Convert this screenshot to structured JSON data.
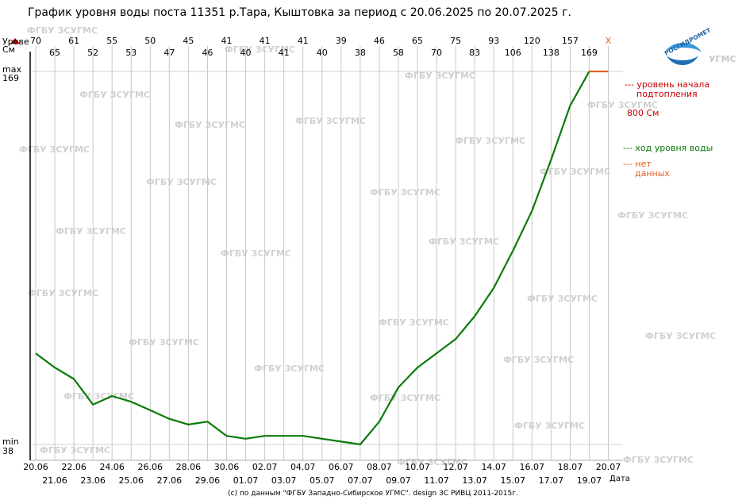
{
  "chart_data": {
    "type": "line",
    "title": "График уровня воды поста 11351 р.Тара, Кыштовка за период с 20.06.2025 по 20.07.2025 г.",
    "ylabel_line1": "Урове",
    "ylabel_line2": "Cм",
    "xlabel": "Дата",
    "max_label": "max",
    "min_label": "min",
    "ymin": 38,
    "ymax": 169,
    "dates": [
      "20.06",
      "21.06",
      "22.06",
      "23.06",
      "24.06",
      "25.06",
      "26.06",
      "27.06",
      "28.06",
      "29.06",
      "30.06",
      "01.07",
      "02.07",
      "03.07",
      "04.07",
      "05.07",
      "06.07",
      "07.07",
      "08.07",
      "09.07",
      "10.07",
      "11.07",
      "12.07",
      "13.07",
      "14.07",
      "15.07",
      "16.07",
      "17.07",
      "18.07",
      "19.07",
      "20.07"
    ],
    "top_values": [
      "70",
      "65",
      "61",
      "52",
      "55",
      "53",
      "50",
      "47",
      "45",
      "46",
      "41",
      "40",
      "41",
      "41",
      "41",
      "40",
      "39",
      "38",
      "46",
      "58",
      "65",
      "70",
      "75",
      "83",
      "93",
      "106",
      "120",
      "138",
      "157",
      "169",
      "X"
    ],
    "series": [
      {
        "values": [
          70,
          65,
          61,
          52,
          55,
          53,
          50,
          47,
          45,
          46,
          41,
          40,
          41,
          41,
          41,
          40,
          39,
          38,
          46,
          58,
          65,
          70,
          75,
          83,
          93,
          106,
          120,
          138,
          157,
          169,
          null
        ],
        "color": "#0a7a0a"
      }
    ],
    "no_data_color": "#e06020",
    "legend": [
      {
        "text": "--- уровень начала",
        "color": "#cc0000"
      },
      {
        "text": "подтопления",
        "color": "#cc0000"
      },
      {
        "text": "800 См",
        "color": "#cc0000"
      },
      {
        "text": "--- ход уровня воды",
        "color": "#0a7a0a"
      },
      {
        "text": "--- нет",
        "color": "#e06020"
      },
      {
        "text": "данных",
        "color": "#e06020"
      }
    ],
    "logo_text": "РОСГИДРОМЕТ",
    "logo_suffix": "УГМС",
    "watermark": "ФГБУ ЗСУГМС",
    "footer": "(c) по данным \"ФГБУ Западно-Сибирское УГМС\". design ЗС РИВЦ 2011-2015г."
  }
}
